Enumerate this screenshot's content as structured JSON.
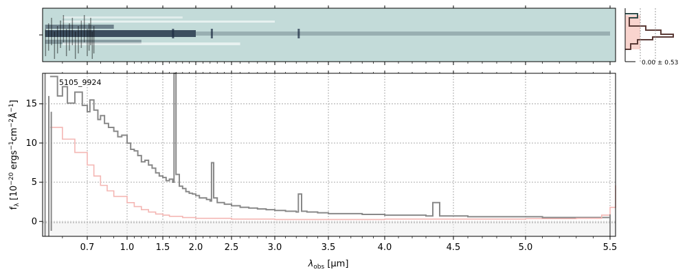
{
  "chart_data": {
    "type": "line",
    "object_label": "5105_9924",
    "ylabel_main": "f",
    "ylabel_sub": "λ",
    "ylabel_units": "[10",
    "ylabel_exp1": "−20",
    "ylabel_mid1": " ergs",
    "ylabel_exp2": "−1",
    "ylabel_mid2": "cm",
    "ylabel_exp3": "−2",
    "ylabel_mid3": "Å",
    "ylabel_exp4": "−1",
    "ylabel_end": "]",
    "xlabel_main": "λ",
    "xlabel_sub": "obs",
    "xlabel_units": " [μm]",
    "x_ticks": [
      0.7,
      1.0,
      1.5,
      2.0,
      2.5,
      3.0,
      3.5,
      4.0,
      4.5,
      5.0,
      5.5
    ],
    "x_tick_labels": [
      "0.7",
      "1.0",
      "1.5",
      "2.0",
      "2.5",
      "3.0",
      "3.5",
      "4.0",
      "4.5",
      "5.0",
      "5.5"
    ],
    "y_ticks": [
      0,
      5,
      10,
      15
    ],
    "y_tick_labels": [
      "0",
      "5",
      "10",
      "15"
    ],
    "ylim": [
      -1.9,
      18.9
    ],
    "xlim": [
      0.52,
      5.53
    ],
    "grid": true,
    "histogram_label": "0.00 ± 0.53",
    "colors": {
      "flux": "#888888",
      "error": "#f4b6b3",
      "model": "#a0332e",
      "spec2d_bg": "#c3dbd9",
      "spec2d_dark": "#1a2a40",
      "hist_fill": "#f9d4ce",
      "hist_edge": "#5a3a36"
    },
    "series": [
      {
        "role": "flux",
        "x": [
          0.55,
          0.58,
          0.6,
          0.62,
          0.65,
          0.68,
          0.7,
          0.72,
          0.75,
          0.78,
          0.8,
          0.83,
          0.86,
          0.9,
          0.93,
          0.96,
          1.0,
          1.05,
          1.1,
          1.15,
          1.2,
          1.25,
          1.3,
          1.35,
          1.4,
          1.45,
          1.5,
          1.55,
          1.6,
          1.65,
          1.67,
          1.7,
          1.75,
          1.8,
          1.85,
          1.9,
          1.95,
          2.0,
          2.05,
          2.1,
          2.15,
          2.2,
          2.22,
          2.25,
          2.3,
          2.4,
          2.5,
          2.6,
          2.7,
          2.8,
          2.9,
          3.0,
          3.1,
          3.2,
          3.22,
          3.25,
          3.3,
          3.4,
          3.5,
          3.6,
          3.7,
          3.8,
          3.9,
          4.0,
          4.1,
          4.2,
          4.3,
          4.35,
          4.4,
          4.5,
          4.6,
          4.7,
          4.8,
          4.9,
          5.0,
          5.1,
          5.2,
          5.3,
          5.4,
          5.5
        ],
        "y": [
          18.5,
          16.0,
          17.2,
          15.1,
          16.5,
          14.8,
          14.0,
          15.5,
          14.2,
          13.0,
          13.5,
          12.5,
          12.0,
          11.5,
          10.8,
          11.0,
          10.0,
          9.2,
          9.0,
          8.4,
          7.6,
          7.8,
          7.2,
          6.8,
          6.2,
          5.8,
          5.6,
          5.2,
          5.4,
          5.0,
          18.9,
          6.0,
          4.5,
          4.2,
          3.8,
          3.6,
          3.5,
          3.3,
          3.0,
          3.0,
          2.8,
          2.6,
          7.5,
          3.0,
          2.4,
          2.2,
          2.0,
          1.8,
          1.7,
          1.6,
          1.5,
          1.4,
          1.3,
          1.2,
          3.5,
          1.3,
          1.2,
          1.1,
          1.0,
          1.0,
          1.0,
          0.9,
          0.9,
          0.8,
          0.8,
          0.8,
          0.7,
          2.4,
          0.7,
          0.7,
          0.6,
          0.6,
          0.6,
          0.6,
          0.6,
          0.5,
          0.5,
          0.5,
          0.5,
          0.4
        ]
      },
      {
        "role": "error",
        "x": [
          0.55,
          0.6,
          0.65,
          0.7,
          0.75,
          0.8,
          0.85,
          0.9,
          1.0,
          1.1,
          1.2,
          1.3,
          1.4,
          1.5,
          1.6,
          1.8,
          2.0,
          2.5,
          3.0,
          3.5,
          4.0,
          4.5,
          5.0,
          5.3,
          5.45,
          5.5,
          5.53
        ],
        "y": [
          12.0,
          10.5,
          8.8,
          7.2,
          5.8,
          4.6,
          3.9,
          3.2,
          2.4,
          1.9,
          1.5,
          1.2,
          0.95,
          0.8,
          0.65,
          0.5,
          0.4,
          0.3,
          0.25,
          0.25,
          0.3,
          0.3,
          0.35,
          0.4,
          0.8,
          1.8,
          4.6
        ]
      }
    ]
  }
}
